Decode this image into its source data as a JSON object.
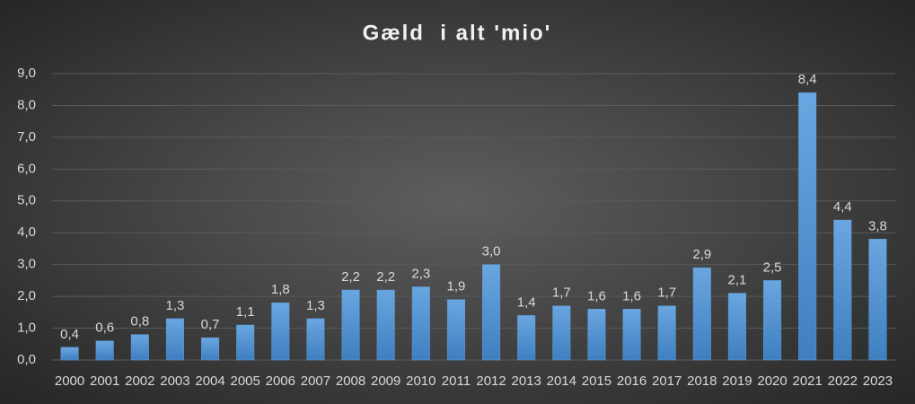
{
  "chart_data": {
    "type": "bar",
    "title": "Gæld  i alt 'mio'",
    "categories": [
      "2000",
      "2001",
      "2002",
      "2003",
      "2004",
      "2005",
      "2006",
      "2007",
      "2008",
      "2009",
      "2010",
      "2011",
      "2012",
      "2013",
      "2014",
      "2015",
      "2016",
      "2017",
      "2018",
      "2019",
      "2020",
      "2021",
      "2022",
      "2023"
    ],
    "values": [
      0.4,
      0.6,
      0.8,
      1.3,
      0.7,
      1.1,
      1.8,
      1.3,
      2.2,
      2.2,
      2.3,
      1.9,
      3.0,
      1.4,
      1.7,
      1.6,
      1.6,
      1.7,
      2.9,
      2.1,
      2.5,
      8.4,
      4.4,
      3.8
    ],
    "value_labels": [
      "0,4",
      "0,6",
      "0,8",
      "1,3",
      "0,7",
      "1,1",
      "1,8",
      "1,3",
      "2,2",
      "2,2",
      "2,3",
      "1,9",
      "3,0",
      "1,4",
      "1,7",
      "1,6",
      "1,6",
      "1,7",
      "2,9",
      "2,1",
      "2,5",
      "8,4",
      "4,4",
      "3,8"
    ],
    "color": "#5b9bd5",
    "ylim": [
      0,
      9
    ],
    "yticks": [
      {
        "value": 0,
        "label": "0,0"
      },
      {
        "value": 1,
        "label": "1,0"
      },
      {
        "value": 2,
        "label": "2,0"
      },
      {
        "value": 3,
        "label": "3,0"
      },
      {
        "value": 4,
        "label": "4,0"
      },
      {
        "value": 5,
        "label": "5,0"
      },
      {
        "value": 6,
        "label": "6,0"
      },
      {
        "value": 7,
        "label": "7,0"
      },
      {
        "value": 8,
        "label": "8,0"
      },
      {
        "value": 9,
        "label": "9,0"
      }
    ],
    "grid": true
  }
}
